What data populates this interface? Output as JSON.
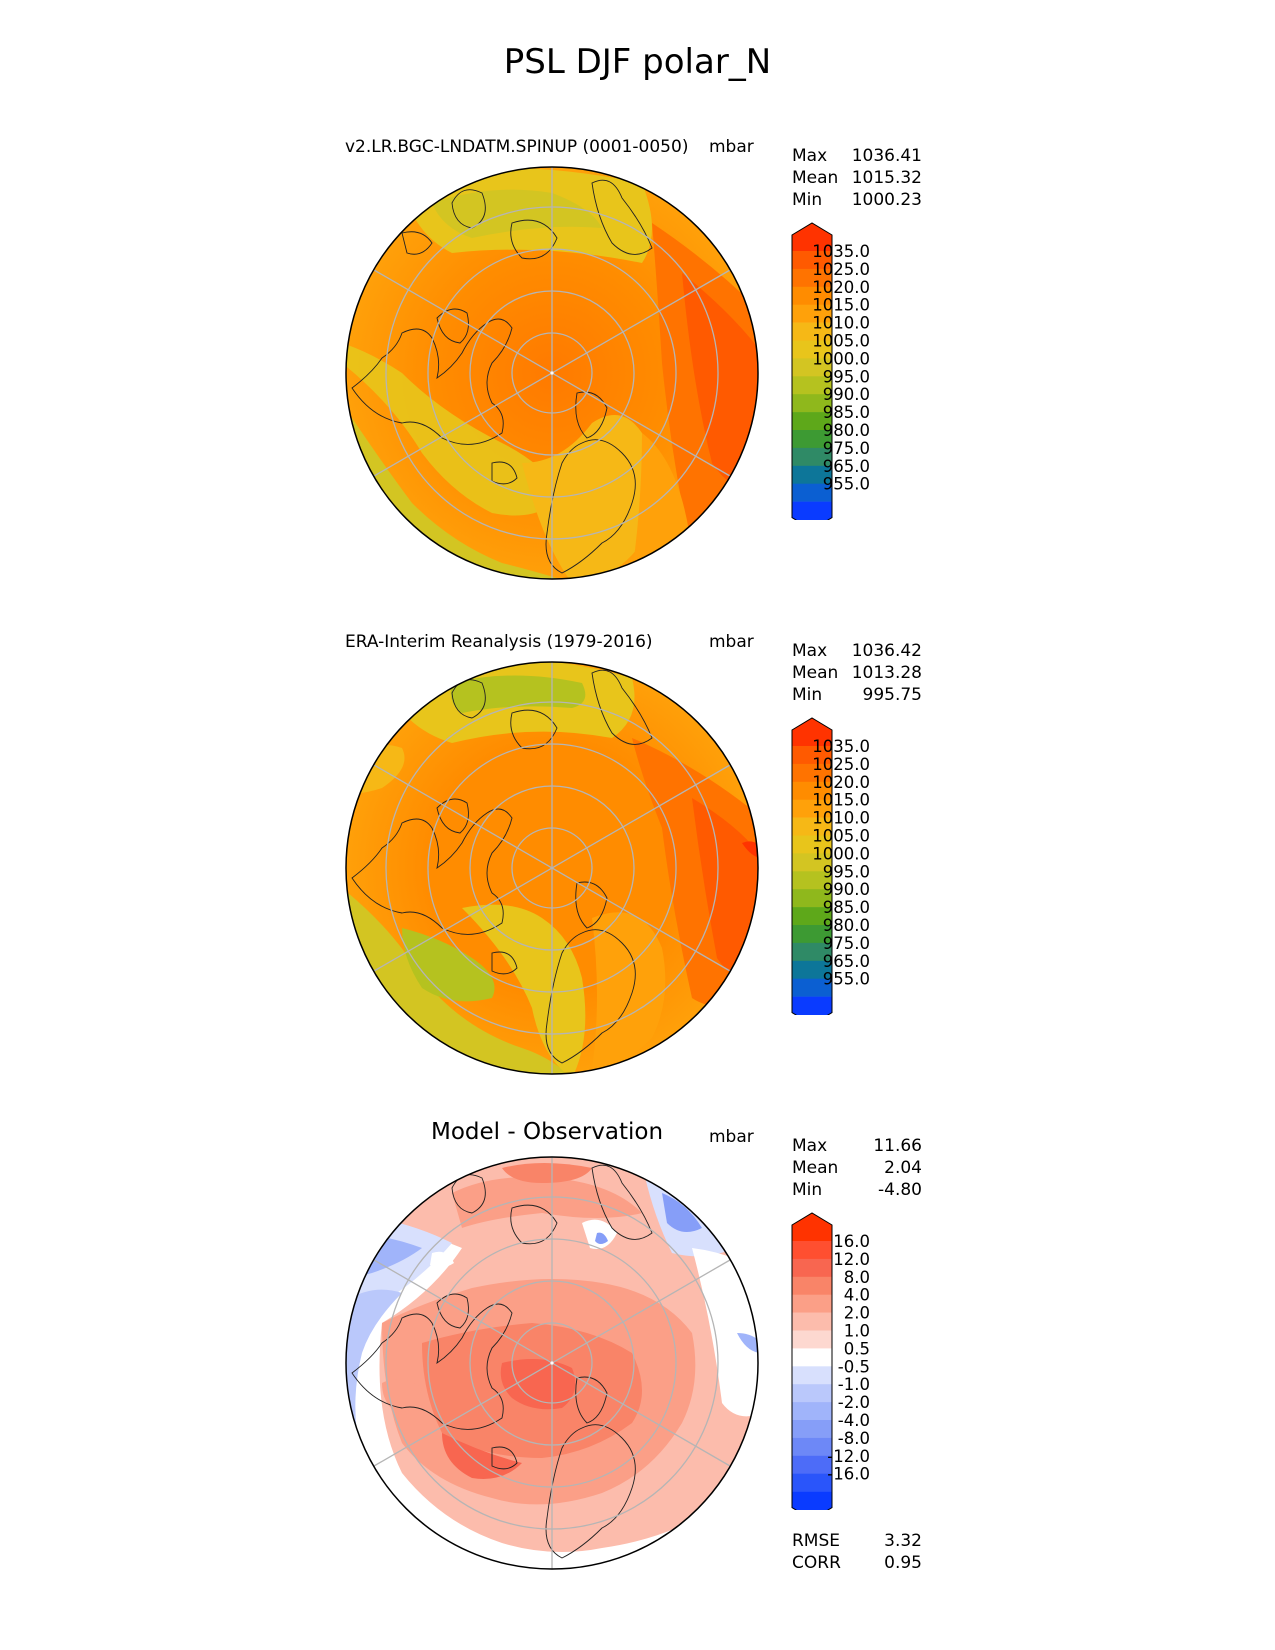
{
  "title": "PSL DJF polar_N",
  "panels": [
    {
      "id": "test",
      "subtitle": "v2.LR.BGC-LNDATM.SPINUP (0001-0050)",
      "units": "mbar",
      "stats": [
        {
          "label": "Max",
          "value": "1036.41"
        },
        {
          "label": "Mean",
          "value": "1015.32"
        },
        {
          "label": "Min",
          "value": "1000.23"
        }
      ]
    },
    {
      "id": "ref",
      "subtitle": "ERA-Interim Reanalysis (1979-2016)",
      "units": "mbar",
      "stats": [
        {
          "label": "Max",
          "value": "1036.42"
        },
        {
          "label": "Mean",
          "value": "1013.28"
        },
        {
          "label": "Min",
          "value": "995.75"
        }
      ]
    },
    {
      "id": "diff",
      "subtitle": "Model - Observation",
      "units": "mbar",
      "stats": [
        {
          "label": "Max",
          "value": "11.66"
        },
        {
          "label": "Mean",
          "value": "2.04"
        },
        {
          "label": "Min",
          "value": "-4.80"
        }
      ],
      "metrics": [
        {
          "label": "RMSE",
          "value": "3.32"
        },
        {
          "label": "CORR",
          "value": "0.95"
        }
      ]
    }
  ],
  "colorbars": {
    "field": {
      "ticks": [
        "1035.0",
        "1025.0",
        "1020.0",
        "1015.0",
        "1010.0",
        "1005.0",
        "1000.0",
        "995.0",
        "990.0",
        "985.0",
        "980.0",
        "975.0",
        "965.0",
        "955.0"
      ],
      "colors": [
        "#ff3300",
        "#ff5a00",
        "#ff7300",
        "#ff8c00",
        "#ffa10a",
        "#f6b816",
        "#e8c51b",
        "#d3c522",
        "#b5c21f",
        "#8fb81c",
        "#5ea81a",
        "#3d9a33",
        "#2f8a66",
        "#0d7699",
        "#0b5fd2",
        "#0a3bff"
      ]
    },
    "diff": {
      "ticks": [
        "16.0",
        "12.0",
        "8.0",
        "4.0",
        "2.0",
        "1.0",
        "0.5",
        "-0.5",
        "-1.0",
        "-2.0",
        "-4.0",
        "-8.0",
        "-12.0",
        "-16.0"
      ],
      "colors": [
        "#ff3300",
        "#ff4f30",
        "#f86650",
        "#f98468",
        "#fb9f87",
        "#fcbcac",
        "#fdd8d0",
        "#ffffff",
        "#d8e0fd",
        "#bac8fb",
        "#a0b4fa",
        "#869ef8",
        "#6d88f7",
        "#4d6cf8",
        "#2a55fa",
        "#0a3bff"
      ]
    }
  }
}
